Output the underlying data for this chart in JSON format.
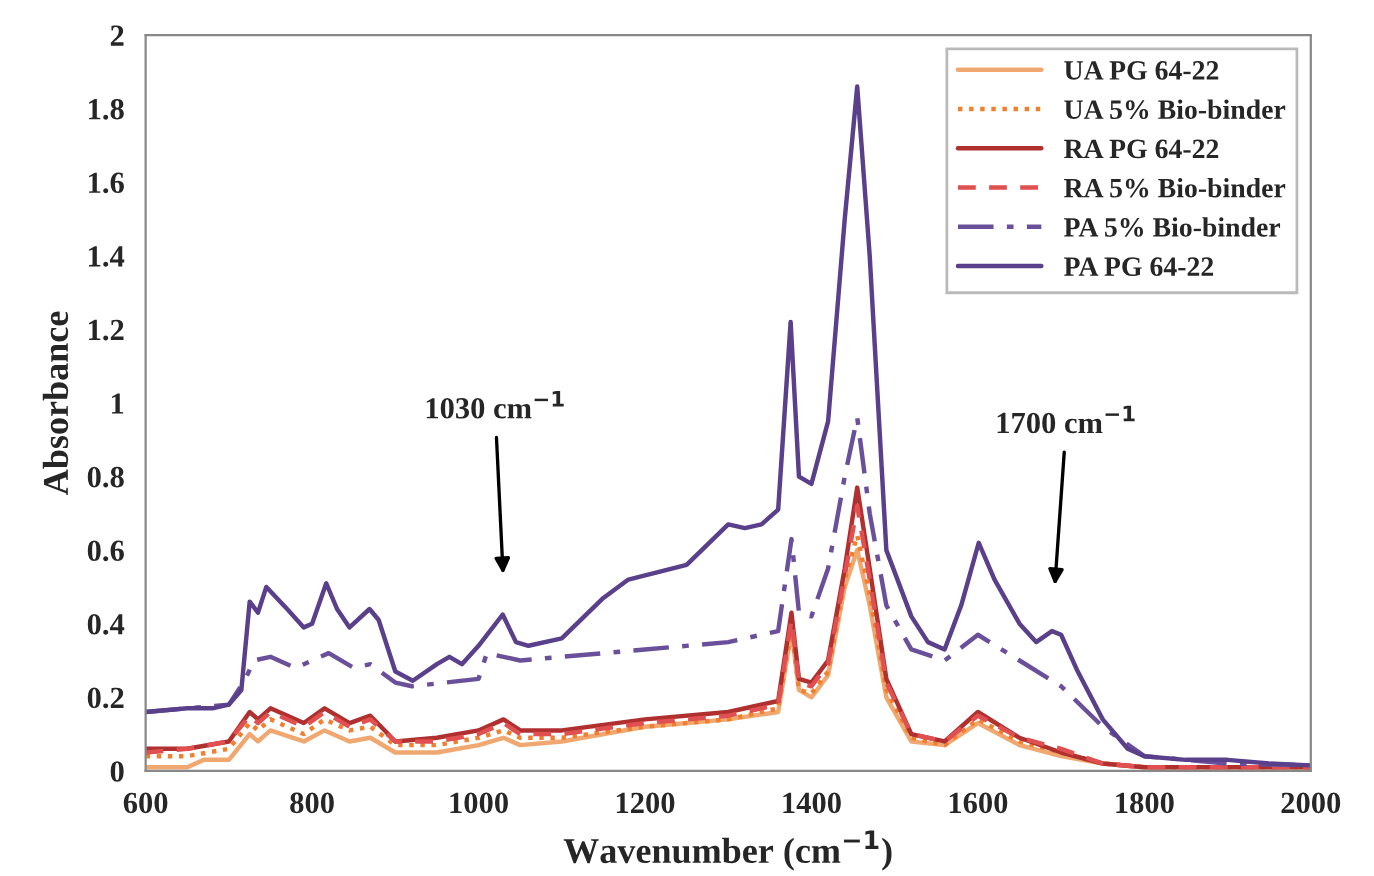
{
  "chart_data": {
    "type": "line",
    "xlabel": "Wavenumber (cm$^{−1}$)",
    "ylabel": "Absorbance",
    "xlim": [
      600,
      2000
    ],
    "ylim": [
      0,
      2
    ],
    "xticks": [
      600,
      800,
      1000,
      1200,
      1400,
      1600,
      1800,
      2000
    ],
    "yticks": [
      0,
      0.2,
      0.4,
      0.6,
      0.8,
      1,
      1.2,
      1.4,
      1.6,
      1.8,
      2
    ],
    "grid": false,
    "legend": "top right",
    "marker": "none",
    "annotations": [
      "1030 cm$^{−1}$",
      "1700 cm$^{−1}$"
    ],
    "series": [
      {
        "name": "UA PG 64-22",
        "color": "#f0a870",
        "line_style": "solid",
        "x": [
          600,
          650,
          670,
          700,
          725,
          735,
          750,
          790,
          815,
          845,
          870,
          900,
          950,
          1000,
          1030,
          1050,
          1100,
          1200,
          1300,
          1360,
          1376,
          1385,
          1400,
          1420,
          1440,
          1455,
          1470,
          1490,
          1520,
          1560,
          1600,
          1650,
          1700,
          1750,
          1800,
          1900,
          2000
        ],
        "values": [
          0.01,
          0.01,
          0.03,
          0.03,
          0.1,
          0.08,
          0.11,
          0.08,
          0.11,
          0.08,
          0.09,
          0.05,
          0.05,
          0.07,
          0.09,
          0.07,
          0.08,
          0.12,
          0.14,
          0.16,
          0.38,
          0.22,
          0.2,
          0.26,
          0.5,
          0.6,
          0.45,
          0.2,
          0.08,
          0.07,
          0.13,
          0.07,
          0.04,
          0.02,
          0.01,
          0.01,
          0.01
        ]
      },
      {
        "name": "UA 5% Bio-binder",
        "color": "#f08030",
        "line_style": "dotted",
        "x": [
          600,
          650,
          700,
          725,
          735,
          750,
          790,
          815,
          845,
          870,
          900,
          950,
          1000,
          1030,
          1050,
          1100,
          1200,
          1300,
          1360,
          1376,
          1385,
          1400,
          1420,
          1440,
          1455,
          1470,
          1490,
          1520,
          1560,
          1600,
          1650,
          1700,
          1750,
          1800,
          1900,
          2000
        ],
        "values": [
          0.04,
          0.04,
          0.06,
          0.13,
          0.11,
          0.14,
          0.1,
          0.14,
          0.11,
          0.12,
          0.07,
          0.07,
          0.09,
          0.11,
          0.09,
          0.09,
          0.12,
          0.14,
          0.17,
          0.39,
          0.22,
          0.21,
          0.27,
          0.52,
          0.64,
          0.48,
          0.22,
          0.09,
          0.07,
          0.14,
          0.08,
          0.05,
          0.02,
          0.01,
          0.01,
          0.01
        ]
      },
      {
        "name": "RA PG 64-22",
        "color": "#b03030",
        "line_style": "solid",
        "x": [
          600,
          650,
          700,
          725,
          735,
          750,
          790,
          815,
          845,
          870,
          900,
          950,
          1000,
          1030,
          1050,
          1100,
          1200,
          1300,
          1360,
          1376,
          1385,
          1400,
          1420,
          1440,
          1455,
          1470,
          1490,
          1520,
          1560,
          1600,
          1650,
          1700,
          1750,
          1800,
          1900,
          2000
        ],
        "values": [
          0.06,
          0.06,
          0.08,
          0.16,
          0.14,
          0.17,
          0.13,
          0.17,
          0.13,
          0.15,
          0.08,
          0.09,
          0.11,
          0.14,
          0.11,
          0.11,
          0.14,
          0.16,
          0.19,
          0.43,
          0.25,
          0.24,
          0.3,
          0.55,
          0.77,
          0.55,
          0.25,
          0.1,
          0.08,
          0.16,
          0.09,
          0.05,
          0.02,
          0.01,
          0.01,
          0.01
        ]
      },
      {
        "name": "RA 5% Bio-binder",
        "color": "#e05050",
        "line_style": "dashed",
        "x": [
          600,
          650,
          700,
          725,
          735,
          750,
          790,
          815,
          845,
          870,
          900,
          950,
          1000,
          1030,
          1050,
          1100,
          1200,
          1300,
          1360,
          1376,
          1385,
          1400,
          1420,
          1440,
          1455,
          1470,
          1490,
          1520,
          1560,
          1600,
          1650,
          1700,
          1750,
          1800,
          1900,
          2000
        ],
        "values": [
          0.05,
          0.06,
          0.08,
          0.15,
          0.13,
          0.16,
          0.12,
          0.16,
          0.12,
          0.14,
          0.08,
          0.08,
          0.1,
          0.13,
          0.1,
          0.1,
          0.13,
          0.15,
          0.18,
          0.41,
          0.24,
          0.23,
          0.29,
          0.53,
          0.72,
          0.52,
          0.24,
          0.1,
          0.08,
          0.15,
          0.09,
          0.06,
          0.02,
          0.01,
          0.01,
          0.01
        ]
      },
      {
        "name": "PA 5% Bio-binder",
        "color": "#6a4f9a",
        "line_style": "dashdot",
        "x": [
          600,
          650,
          700,
          720,
          730,
          750,
          780,
          820,
          850,
          870,
          900,
          920,
          1000,
          1010,
          1050,
          1100,
          1200,
          1300,
          1360,
          1376,
          1385,
          1400,
          1420,
          1440,
          1455,
          1470,
          1490,
          1520,
          1560,
          1600,
          1650,
          1700,
          1750,
          1800,
          1900,
          2000
        ],
        "values": [
          0.16,
          0.17,
          0.18,
          0.25,
          0.3,
          0.31,
          0.28,
          0.32,
          0.28,
          0.29,
          0.24,
          0.23,
          0.25,
          0.32,
          0.3,
          0.31,
          0.33,
          0.35,
          0.38,
          0.63,
          0.43,
          0.42,
          0.55,
          0.8,
          0.96,
          0.7,
          0.45,
          0.33,
          0.3,
          0.37,
          0.3,
          0.23,
          0.12,
          0.04,
          0.02,
          0.015
        ]
      },
      {
        "name": "PA PG 64-22",
        "color": "#5a3f8a",
        "line_style": "solid",
        "x": [
          600,
          650,
          680,
          700,
          715,
          725,
          735,
          745,
          770,
          790,
          800,
          817,
          830,
          845,
          869,
          880,
          900,
          921,
          950,
          965,
          980,
          1000,
          1029,
          1045,
          1060,
          1100,
          1150,
          1180,
          1250,
          1300,
          1320,
          1340,
          1360,
          1375,
          1385,
          1400,
          1420,
          1440,
          1455,
          1470,
          1490,
          1520,
          1540,
          1560,
          1580,
          1601,
          1620,
          1650,
          1670,
          1689,
          1700,
          1720,
          1750,
          1780,
          1800,
          1850,
          1900,
          1950,
          2000
        ],
        "values": [
          0.16,
          0.17,
          0.17,
          0.18,
          0.22,
          0.46,
          0.43,
          0.5,
          0.44,
          0.39,
          0.4,
          0.51,
          0.44,
          0.39,
          0.44,
          0.41,
          0.27,
          0.245,
          0.29,
          0.31,
          0.29,
          0.34,
          0.425,
          0.35,
          0.34,
          0.36,
          0.47,
          0.52,
          0.56,
          0.67,
          0.66,
          0.67,
          0.71,
          1.22,
          0.8,
          0.78,
          0.95,
          1.5,
          1.86,
          1.4,
          0.6,
          0.42,
          0.35,
          0.33,
          0.45,
          0.62,
          0.52,
          0.4,
          0.35,
          0.38,
          0.37,
          0.27,
          0.14,
          0.06,
          0.04,
          0.03,
          0.03,
          0.02,
          0.015
        ]
      }
    ]
  }
}
